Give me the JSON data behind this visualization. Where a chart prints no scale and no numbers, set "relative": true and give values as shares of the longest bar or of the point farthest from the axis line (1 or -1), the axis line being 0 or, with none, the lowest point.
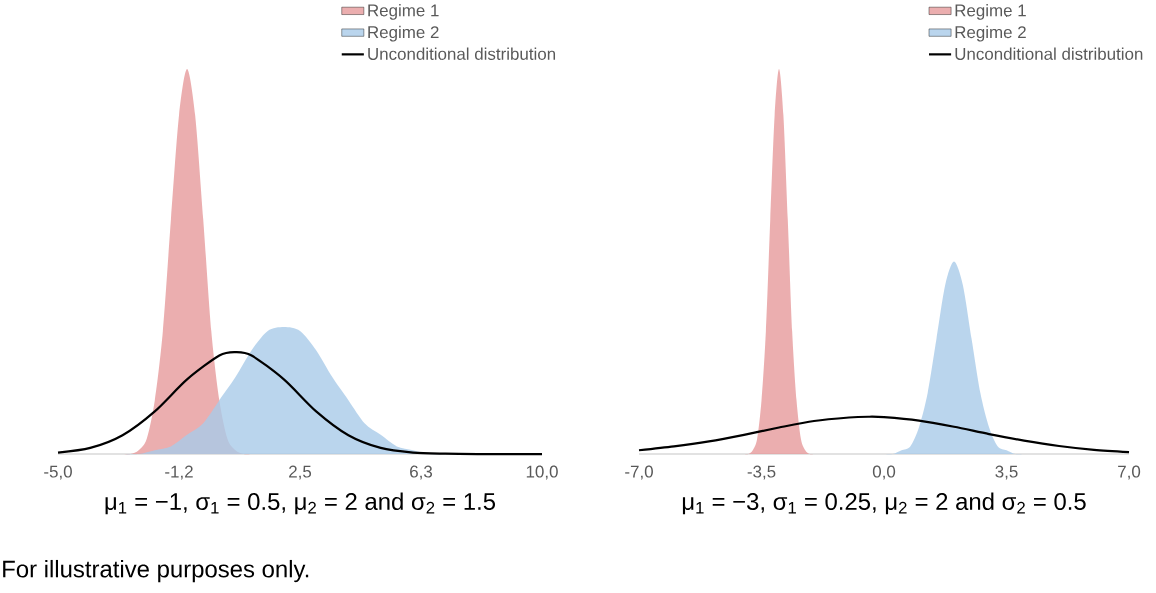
{
  "chart_data": [
    {
      "type": "line",
      "relative": true,
      "legend": "top right",
      "xlabel": "μ$_{1}$ = −1,  σ$_{1}$ = 0.5,  μ$_{2}$ = 2 and σ$_{2}$ = 1.5",
      "annotations": [
        "For illustrative purposes only."
      ],
      "xlim": [
        -5,
        10
      ],
      "xticks": [
        {
          "value": -5,
          "label": "-5,0"
        },
        {
          "value": -1.25,
          "label": "-1,2"
        },
        {
          "value": 2.5,
          "label": "2,5"
        },
        {
          "value": 6.25,
          "label": "6,3"
        },
        {
          "value": 10,
          "label": "10,0"
        }
      ],
      "series": [
        {
          "name": "Regime 1",
          "type": "area",
          "color": "#e69a9b",
          "x": [
            -3,
            -2.75,
            -2.5,
            -2.25,
            -2,
            -1.75,
            -1.5,
            -1.25,
            -1,
            -0.75,
            -0.5,
            -0.25,
            0,
            0.25,
            0.5,
            0.75,
            1
          ],
          "values": [
            0,
            0,
            0.01,
            0.04,
            0.14,
            0.32,
            0.61,
            0.88,
            1,
            0.88,
            0.61,
            0.32,
            0.14,
            0.04,
            0.01,
            0,
            0
          ]
        },
        {
          "name": "Regime 2",
          "type": "area",
          "color": "#a9cbe9",
          "x": [
            -3,
            -2.5,
            -2,
            -1.5,
            -1,
            -0.5,
            0,
            0.5,
            1,
            1.5,
            2,
            2.5,
            3,
            3.5,
            4,
            4.5,
            5,
            5.5,
            6,
            6.5,
            7
          ],
          "values": [
            0,
            0,
            0.01,
            0.02,
            0.05,
            0.08,
            0.14,
            0.2,
            0.27,
            0.32,
            0.33,
            0.32,
            0.27,
            0.2,
            0.14,
            0.08,
            0.05,
            0.02,
            0.01,
            0,
            0
          ]
        },
        {
          "name": "Unconditional distribution",
          "color": "#000000",
          "x": [
            -5,
            -4,
            -3,
            -2,
            -1,
            0,
            0.5,
            1,
            2,
            3,
            4,
            5,
            6,
            7,
            8,
            9,
            10
          ],
          "values": [
            0.004,
            0.016,
            0.049,
            0.111,
            0.194,
            0.256,
            0.265,
            0.256,
            0.194,
            0.111,
            0.049,
            0.016,
            0.004,
            0.001,
            0,
            0,
            0
          ]
        }
      ]
    },
    {
      "type": "line",
      "relative": true,
      "legend": "top right",
      "xlabel": "μ$_{1}$ = −3,  σ$_{1}$ = 0.25,  μ$_{2}$ = 2 and σ$_{2}$ = 0.5",
      "xlim": [
        -7,
        7
      ],
      "xticks": [
        {
          "value": -7,
          "label": "-7,0"
        },
        {
          "value": -3.5,
          "label": "-3,5"
        },
        {
          "value": 0,
          "label": "0,0"
        },
        {
          "value": 3.5,
          "label": "3,5"
        },
        {
          "value": 7,
          "label": "7,0"
        }
      ],
      "series": [
        {
          "name": "Regime 1",
          "type": "area",
          "color": "#e69a9b",
          "x": [
            -4,
            -3.875,
            -3.75,
            -3.625,
            -3.5,
            -3.375,
            -3.25,
            -3.125,
            -3,
            -2.875,
            -2.75,
            -2.625,
            -2.5,
            -2.375,
            -2.25,
            -2.125,
            -2
          ],
          "values": [
            0,
            0,
            0.01,
            0.04,
            0.14,
            0.32,
            0.61,
            0.88,
            1,
            0.88,
            0.61,
            0.32,
            0.14,
            0.04,
            0.01,
            0,
            0
          ]
        },
        {
          "name": "Regime 2",
          "type": "area",
          "color": "#a9cbe9",
          "x": [
            0,
            0.25,
            0.5,
            0.75,
            1,
            1.25,
            1.5,
            1.75,
            2,
            2.25,
            2.5,
            2.75,
            3,
            3.25,
            3.5,
            3.75,
            4
          ],
          "values": [
            0,
            0,
            0.01,
            0.02,
            0.07,
            0.16,
            0.3,
            0.44,
            0.5,
            0.44,
            0.3,
            0.16,
            0.07,
            0.02,
            0.01,
            0,
            0
          ]
        },
        {
          "name": "Unconditional distribution",
          "color": "#000000",
          "x": [
            -7,
            -6,
            -5,
            -4,
            -3,
            -2,
            -1,
            -0.45,
            0,
            1,
            2,
            3,
            4,
            5,
            6,
            7
          ],
          "values": [
            0.01,
            0.02,
            0.033,
            0.05,
            0.069,
            0.086,
            0.095,
            0.097,
            0.096,
            0.087,
            0.071,
            0.052,
            0.035,
            0.021,
            0.011,
            0.005
          ]
        }
      ]
    }
  ]
}
